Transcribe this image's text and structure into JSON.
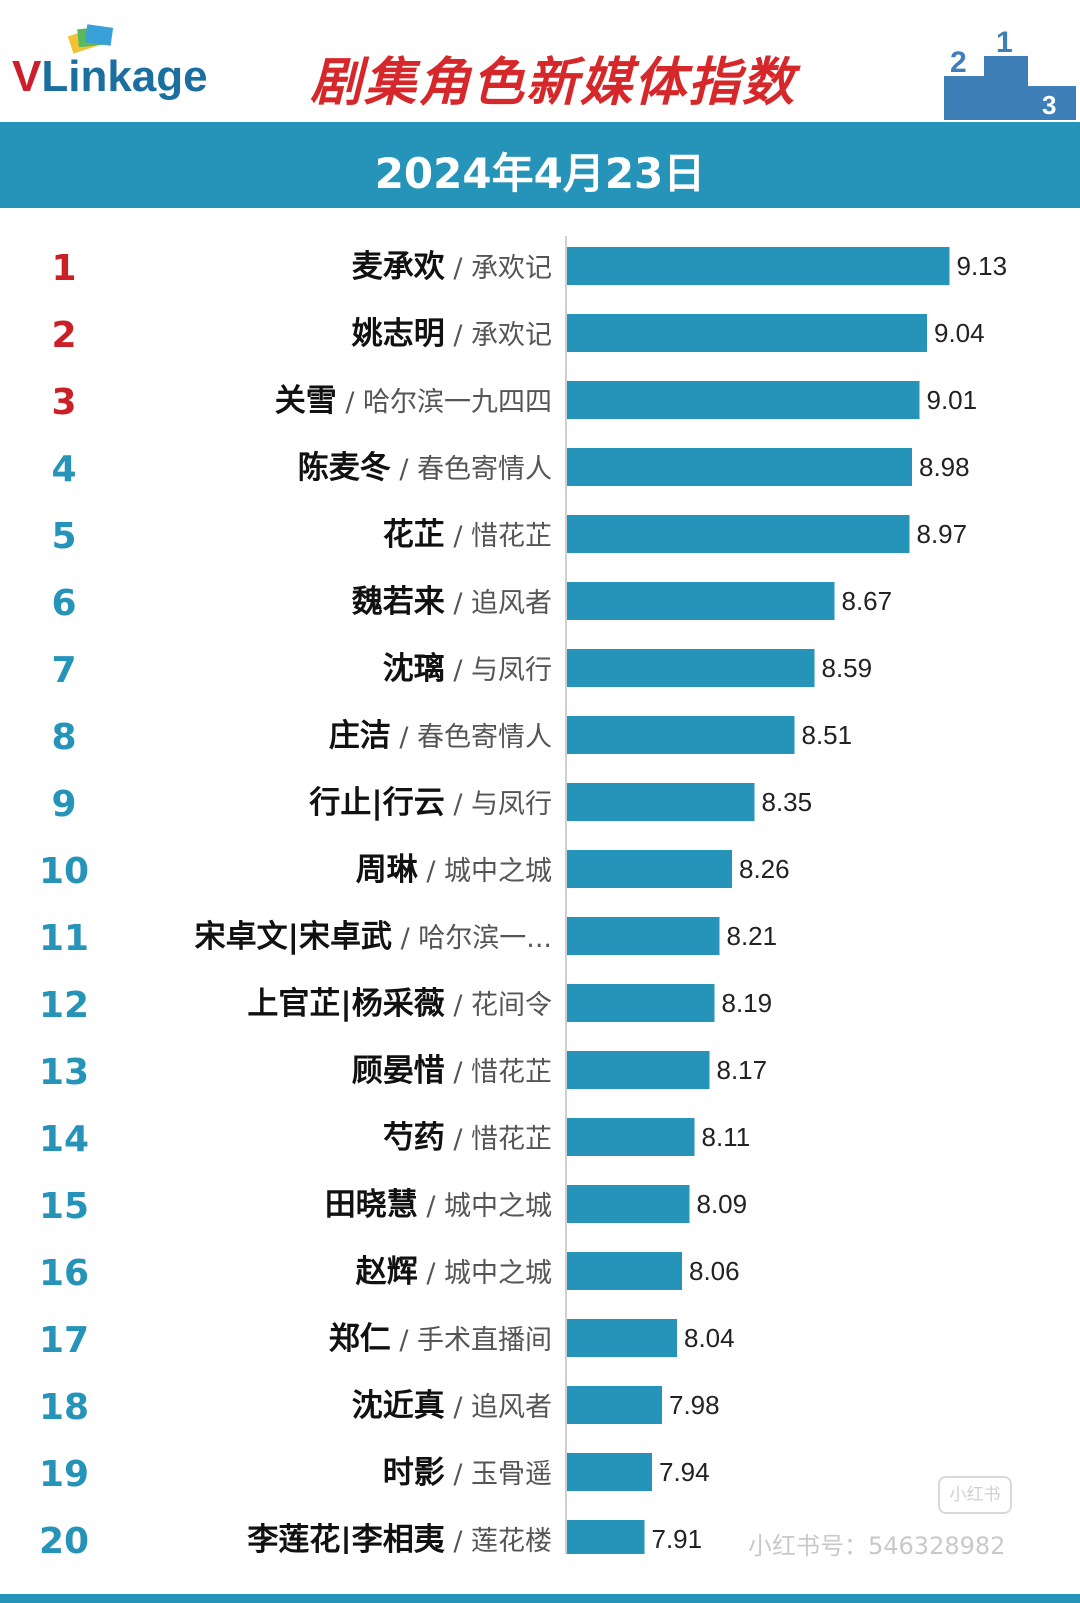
{
  "header": {
    "logo_v": "V",
    "logo_rest": "Linkage",
    "title": "剧集角色新媒体指数",
    "podium_labels": [
      "2",
      "1",
      "3"
    ]
  },
  "date": "2024年4月23日",
  "watermark": {
    "badge": "小红书",
    "text": "小红书号：546328982"
  },
  "colors": {
    "bar": "#2694b8",
    "top_rank": "#cc2027",
    "rank": "#2694b8",
    "title": "#d6282a"
  },
  "chart_data": {
    "type": "bar",
    "orientation": "horizontal",
    "title": "剧集角色新媒体指数",
    "subtitle": "2024年4月23日",
    "xlim": [
      7.6,
      9.2
    ],
    "rows": [
      {
        "rank": "1",
        "name": "麦承欢",
        "drama": "承欢记",
        "value": 9.13
      },
      {
        "rank": "2",
        "name": "姚志明",
        "drama": "承欢记",
        "value": 9.04
      },
      {
        "rank": "3",
        "name": "关雪",
        "drama": "哈尔滨一九四四",
        "value": 9.01
      },
      {
        "rank": "4",
        "name": "陈麦冬",
        "drama": "春色寄情人",
        "value": 8.98
      },
      {
        "rank": "5",
        "name": "花芷",
        "drama": "惜花芷",
        "value": 8.97
      },
      {
        "rank": "6",
        "name": "魏若来",
        "drama": "追风者",
        "value": 8.67
      },
      {
        "rank": "7",
        "name": "沈璃",
        "drama": "与凤行",
        "value": 8.59
      },
      {
        "rank": "8",
        "name": "庄洁",
        "drama": "春色寄情人",
        "value": 8.51
      },
      {
        "rank": "9",
        "name": "行止|行云",
        "drama": "与凤行",
        "value": 8.35
      },
      {
        "rank": "10",
        "name": "周琳",
        "drama": "城中之城",
        "value": 8.26
      },
      {
        "rank": "11",
        "name": "宋卓文|宋卓武",
        "drama": "哈尔滨一...",
        "value": 8.21
      },
      {
        "rank": "12",
        "name": "上官芷|杨采薇",
        "drama": "花间令",
        "value": 8.19
      },
      {
        "rank": "13",
        "name": "顾晏惜",
        "drama": "惜花芷",
        "value": 8.17
      },
      {
        "rank": "14",
        "name": "芍药",
        "drama": "惜花芷",
        "value": 8.11
      },
      {
        "rank": "15",
        "name": "田晓慧",
        "drama": "城中之城",
        "value": 8.09
      },
      {
        "rank": "16",
        "name": "赵辉",
        "drama": "城中之城",
        "value": 8.06
      },
      {
        "rank": "17",
        "name": "郑仁",
        "drama": "手术直播间",
        "value": 8.04
      },
      {
        "rank": "18",
        "name": "沈近真",
        "drama": "追风者",
        "value": 7.98
      },
      {
        "rank": "19",
        "name": "时影",
        "drama": "玉骨遥",
        "value": 7.94
      },
      {
        "rank": "20",
        "name": "李莲花|李相夷",
        "drama": "莲花楼",
        "value": 7.91
      }
    ]
  }
}
